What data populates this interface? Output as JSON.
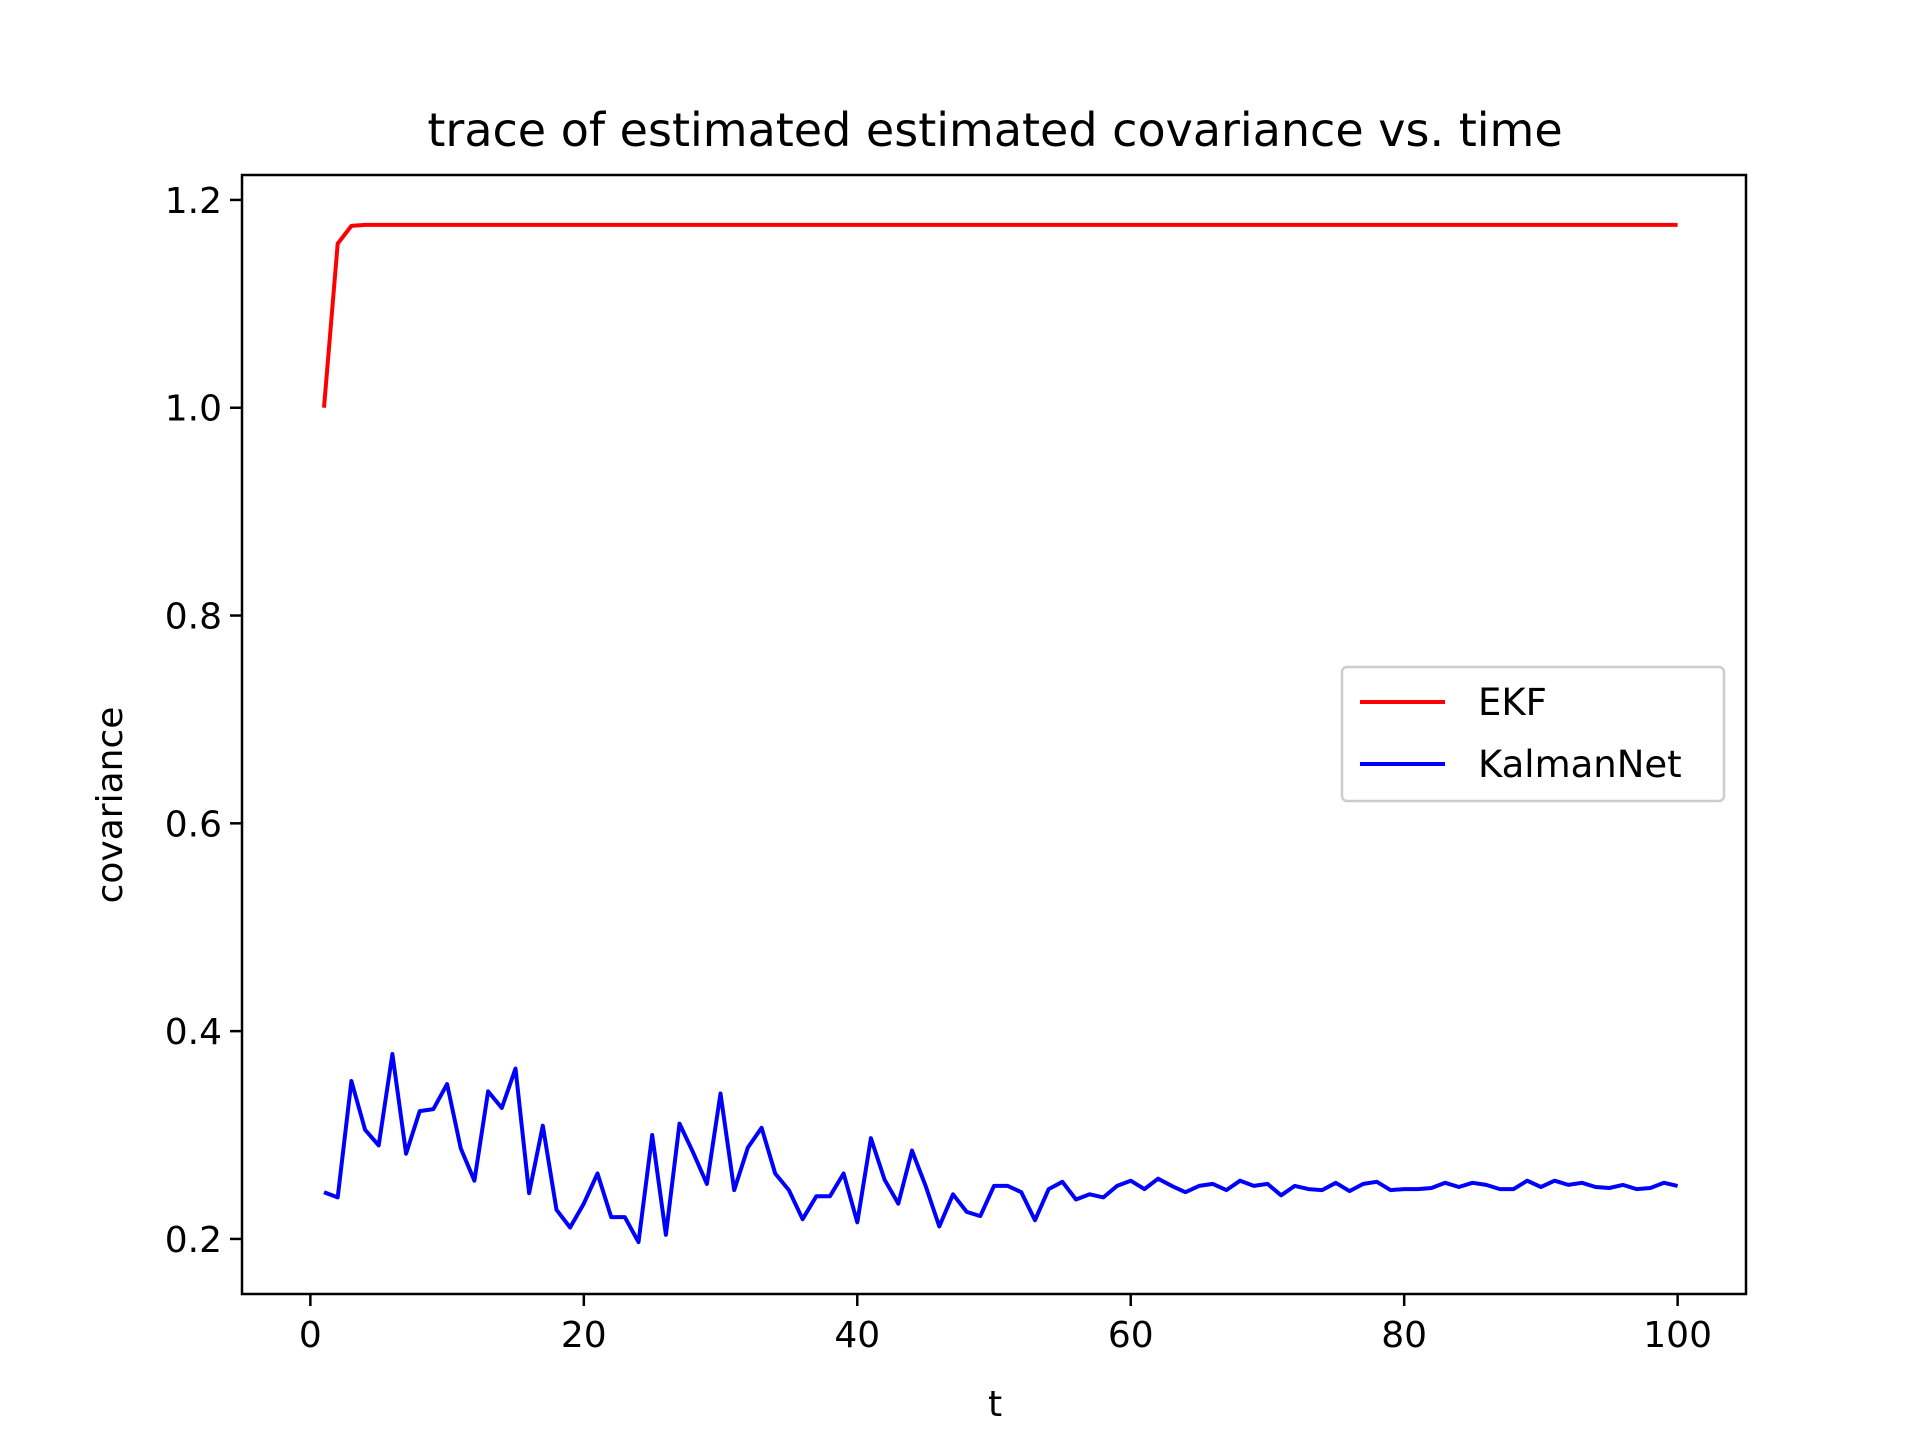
{
  "chart_data": {
    "type": "line",
    "title": "trace of estimated estimated covariance vs. time",
    "xlabel": "t",
    "ylabel": "covariance",
    "xlim": [
      -5,
      105
    ],
    "ylim": [
      0.147,
      1.224
    ],
    "xticks": [
      0,
      20,
      40,
      60,
      80,
      100
    ],
    "yticks": [
      0.2,
      0.4,
      0.6,
      0.8,
      1.0,
      1.2
    ],
    "xtick_labels": [
      "0",
      "20",
      "40",
      "60",
      "80",
      "100"
    ],
    "ytick_labels": [
      "0.2",
      "0.4",
      "0.6",
      "0.8",
      "1.0",
      "1.2"
    ],
    "grid": false,
    "legend_position": "center-right",
    "x": [
      1,
      2,
      3,
      4,
      5,
      6,
      7,
      8,
      9,
      10,
      11,
      12,
      13,
      14,
      15,
      16,
      17,
      18,
      19,
      20,
      21,
      22,
      23,
      24,
      25,
      26,
      27,
      28,
      29,
      30,
      31,
      32,
      33,
      34,
      35,
      36,
      37,
      38,
      39,
      40,
      41,
      42,
      43,
      44,
      45,
      46,
      47,
      48,
      49,
      50,
      51,
      52,
      53,
      54,
      55,
      56,
      57,
      58,
      59,
      60,
      61,
      62,
      63,
      64,
      65,
      66,
      67,
      68,
      69,
      70,
      71,
      72,
      73,
      74,
      75,
      76,
      77,
      78,
      79,
      80,
      81,
      82,
      83,
      84,
      85,
      86,
      87,
      88,
      89,
      90,
      91,
      92,
      93,
      94,
      95,
      96,
      97,
      98,
      99,
      100
    ],
    "series": [
      {
        "name": "EKF",
        "color": "#ff0000",
        "values": [
          1.0,
          1.158,
          1.175,
          1.176,
          1.176,
          1.176,
          1.176,
          1.176,
          1.176,
          1.176,
          1.176,
          1.176,
          1.176,
          1.176,
          1.176,
          1.176,
          1.176,
          1.176,
          1.176,
          1.176,
          1.176,
          1.176,
          1.176,
          1.176,
          1.176,
          1.176,
          1.176,
          1.176,
          1.176,
          1.176,
          1.176,
          1.176,
          1.176,
          1.176,
          1.176,
          1.176,
          1.176,
          1.176,
          1.176,
          1.176,
          1.176,
          1.176,
          1.176,
          1.176,
          1.176,
          1.176,
          1.176,
          1.176,
          1.176,
          1.176,
          1.176,
          1.176,
          1.176,
          1.176,
          1.176,
          1.176,
          1.176,
          1.176,
          1.176,
          1.176,
          1.176,
          1.176,
          1.176,
          1.176,
          1.176,
          1.176,
          1.176,
          1.176,
          1.176,
          1.176,
          1.176,
          1.176,
          1.176,
          1.176,
          1.176,
          1.176,
          1.176,
          1.176,
          1.176,
          1.176,
          1.176,
          1.176,
          1.176,
          1.176,
          1.176,
          1.176,
          1.176,
          1.176,
          1.176,
          1.176,
          1.176,
          1.176,
          1.176,
          1.176,
          1.176,
          1.176,
          1.176,
          1.176,
          1.176,
          1.176
        ]
      },
      {
        "name": "KalmanNet",
        "color": "#0000ff",
        "values": [
          0.245,
          0.24,
          0.352,
          0.305,
          0.29,
          0.378,
          0.282,
          0.323,
          0.325,
          0.349,
          0.287,
          0.256,
          0.342,
          0.326,
          0.364,
          0.244,
          0.309,
          0.228,
          0.211,
          0.234,
          0.263,
          0.221,
          0.221,
          0.197,
          0.3,
          0.204,
          0.311,
          0.283,
          0.253,
          0.34,
          0.247,
          0.288,
          0.307,
          0.263,
          0.247,
          0.219,
          0.241,
          0.241,
          0.263,
          0.216,
          0.297,
          0.257,
          0.234,
          0.285,
          0.251,
          0.212,
          0.243,
          0.226,
          0.222,
          0.251,
          0.251,
          0.245,
          0.218,
          0.248,
          0.255,
          0.238,
          0.243,
          0.24,
          0.251,
          0.256,
          0.248,
          0.258,
          0.251,
          0.245,
          0.251,
          0.253,
          0.247,
          0.256,
          0.251,
          0.253,
          0.242,
          0.251,
          0.248,
          0.247,
          0.254,
          0.246,
          0.253,
          0.255,
          0.247,
          0.248,
          0.248,
          0.249,
          0.254,
          0.25,
          0.254,
          0.252,
          0.248,
          0.248,
          0.256,
          0.25,
          0.256,
          0.252,
          0.254,
          0.25,
          0.249,
          0.252,
          0.248,
          0.249,
          0.254,
          0.251
        ]
      }
    ]
  }
}
